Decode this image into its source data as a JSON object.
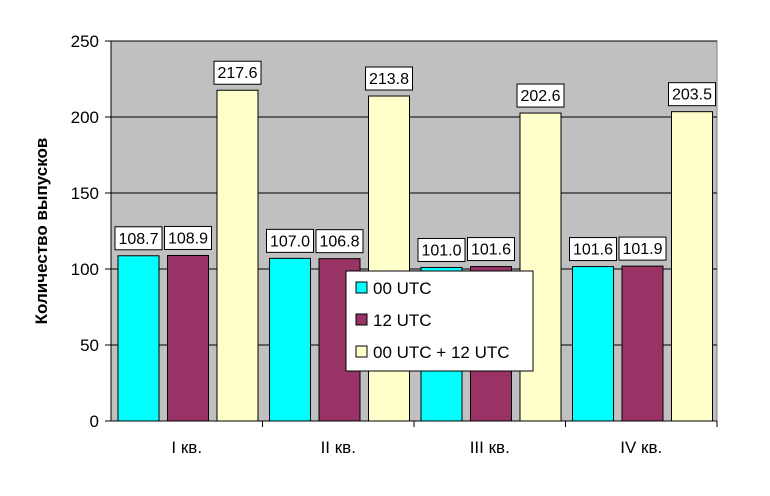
{
  "chart_data": {
    "type": "bar",
    "categories": [
      "I кв.",
      "II кв.",
      "III кв.",
      "IV кв."
    ],
    "series": [
      {
        "name": "00 UTC",
        "values": [
          108.7,
          107.0,
          101.0,
          101.6
        ],
        "labels": [
          "108.7",
          "107.0",
          "101.0",
          "101.6"
        ],
        "color": "#00ffff"
      },
      {
        "name": "12 UTC",
        "values": [
          108.9,
          106.8,
          101.6,
          101.9
        ],
        "labels": [
          "108.9",
          "106.8",
          "101.6",
          "101.9"
        ],
        "color": "#993366"
      },
      {
        "name": "00 UTC + 12 UTC",
        "values": [
          217.6,
          213.8,
          202.6,
          203.5
        ],
        "labels": [
          "217.6",
          "213.8",
          "202.6",
          "203.5"
        ],
        "color": "#ffffcc"
      }
    ],
    "ylabel": "Количество выпусков",
    "xlabel": "",
    "ylim": [
      0,
      250
    ],
    "yticks": [
      0,
      50,
      100,
      150,
      200,
      250
    ],
    "grid": true,
    "plot_background": "#c0c0c0",
    "legend_position": "center"
  }
}
